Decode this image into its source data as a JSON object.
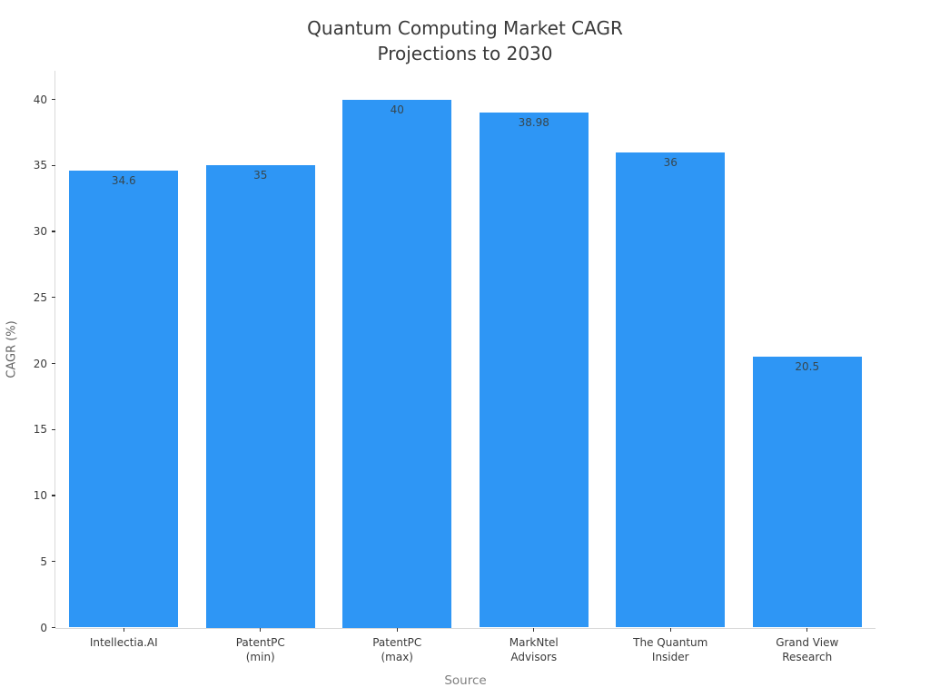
{
  "chart_data": {
    "type": "bar",
    "title": "Quantum Computing Market CAGR\nProjections to 2030",
    "categories": [
      "Intellectia.AI",
      "PatentPC\n(min)",
      "PatentPC\n(max)",
      "MarkNtel\nAdvisors",
      "The Quantum\nInsider",
      "Grand View\nResearch"
    ],
    "values": [
      34.6,
      35,
      40,
      38.98,
      36,
      20.5
    ],
    "value_labels": [
      "34.6",
      "35",
      "40",
      "38.98",
      "36",
      "20.5"
    ],
    "xlabel": "Source",
    "ylabel": "CAGR (%)",
    "ylim": [
      0,
      42.2
    ],
    "yticks": [
      0,
      5,
      10,
      15,
      20,
      25,
      30,
      35,
      40
    ],
    "bar_color": "#2E96F5",
    "grid": false,
    "legend": "none"
  }
}
